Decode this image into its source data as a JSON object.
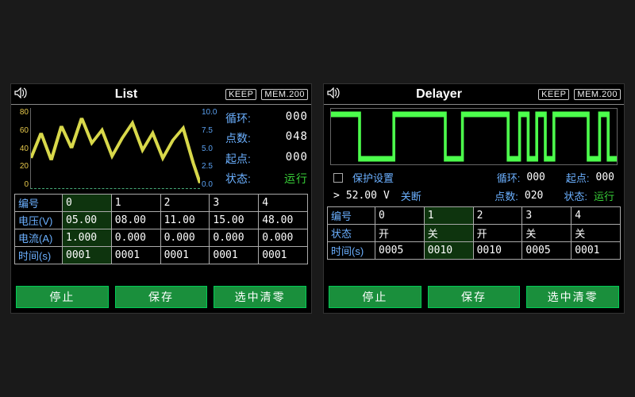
{
  "colors": {
    "bg": "#000000",
    "axis_left": "#e6c84b",
    "axis_right": "#5aa0f0",
    "line_main": "#d8d84a",
    "line_square": "#4cff4c",
    "grid": "#555555",
    "accent_blue": "#6bb0ff",
    "run_green": "#38d038",
    "button_bg": "#1a8f3c"
  },
  "left": {
    "title": "List",
    "badges": {
      "keep": "KEEP",
      "mem": "MEM.200"
    },
    "chart": {
      "type": "line",
      "left_ticks": [
        80,
        60,
        40,
        20,
        0
      ],
      "right_ticks": [
        "10.0",
        "7.5",
        "5.0",
        "2.5",
        "0.0"
      ],
      "line_color": "#d8d84a",
      "line_width": 2,
      "points": [
        [
          0,
          30
        ],
        [
          6,
          55
        ],
        [
          12,
          28
        ],
        [
          18,
          62
        ],
        [
          24,
          40
        ],
        [
          30,
          70
        ],
        [
          36,
          45
        ],
        [
          42,
          58
        ],
        [
          48,
          32
        ],
        [
          54,
          50
        ],
        [
          60,
          65
        ],
        [
          66,
          38
        ],
        [
          72,
          55
        ],
        [
          78,
          30
        ],
        [
          84,
          48
        ],
        [
          90,
          60
        ],
        [
          96,
          25
        ],
        [
          100,
          5
        ]
      ],
      "ylim": [
        0,
        80
      ]
    },
    "stats": [
      {
        "lbl": "循环:",
        "val": "000"
      },
      {
        "lbl": "点数:",
        "val": "048"
      },
      {
        "lbl": "起点:",
        "val": "000"
      },
      {
        "lbl": "状态:",
        "val": "运行",
        "run": true
      }
    ],
    "table": {
      "col_header": "编号",
      "cols": [
        "0",
        "1",
        "2",
        "3",
        "4"
      ],
      "rows": [
        {
          "hdr": "电压(V)",
          "cells": [
            "05.00",
            "08.00",
            "11.00",
            "15.00",
            "48.00"
          ]
        },
        {
          "hdr": "电流(A)",
          "cells": [
            "1.000",
            "0.000",
            "0.000",
            "0.000",
            "0.000"
          ]
        },
        {
          "hdr": "时间(s)",
          "cells": [
            "0001",
            "0001",
            "0001",
            "0001",
            "0001"
          ]
        }
      ],
      "selected_col": 0
    },
    "buttons": [
      "停止",
      "保存",
      "选中清零"
    ]
  },
  "right": {
    "title": "Delayer",
    "badges": {
      "keep": "KEEP",
      "mem": "MEM.200"
    },
    "chart": {
      "type": "square-wave",
      "line_color": "#4cff4c",
      "line_width": 2,
      "levels": [
        [
          0,
          1
        ],
        [
          10,
          1
        ],
        [
          10,
          0
        ],
        [
          22,
          0
        ],
        [
          22,
          1
        ],
        [
          40,
          1
        ],
        [
          40,
          0
        ],
        [
          46,
          0
        ],
        [
          46,
          1
        ],
        [
          62,
          1
        ],
        [
          62,
          0
        ],
        [
          66,
          0
        ],
        [
          66,
          1
        ],
        [
          69,
          1
        ],
        [
          69,
          0
        ],
        [
          72,
          0
        ],
        [
          72,
          1
        ],
        [
          75,
          1
        ],
        [
          75,
          0
        ],
        [
          78,
          0
        ],
        [
          78,
          1
        ],
        [
          90,
          1
        ],
        [
          90,
          0
        ],
        [
          94,
          0
        ],
        [
          94,
          1
        ],
        [
          97,
          1
        ],
        [
          97,
          0
        ],
        [
          100,
          0
        ]
      ]
    },
    "protect": {
      "checkbox_label": "保护设置",
      "threshold_prefix": ">",
      "threshold_value": "52.00",
      "threshold_unit": "V",
      "action_label": "关断",
      "stats": [
        {
          "lbl": "循环:",
          "val": "000"
        },
        {
          "lbl": "起点:",
          "val": "000"
        },
        {
          "lbl": "点数:",
          "val": "020"
        },
        {
          "lbl": "状态:",
          "val": "运行",
          "run": true
        }
      ]
    },
    "table": {
      "col_header": "编号",
      "cols": [
        "0",
        "1",
        "2",
        "3",
        "4"
      ],
      "rows": [
        {
          "hdr": "状态",
          "cells": [
            "开",
            "关",
            "开",
            "关",
            "关"
          ]
        },
        {
          "hdr": "时间(s)",
          "cells": [
            "0005",
            "0010",
            "0010",
            "0005",
            "0001"
          ]
        }
      ],
      "selected_col": 1
    },
    "buttons": [
      "停止",
      "保存",
      "选中清零"
    ]
  }
}
